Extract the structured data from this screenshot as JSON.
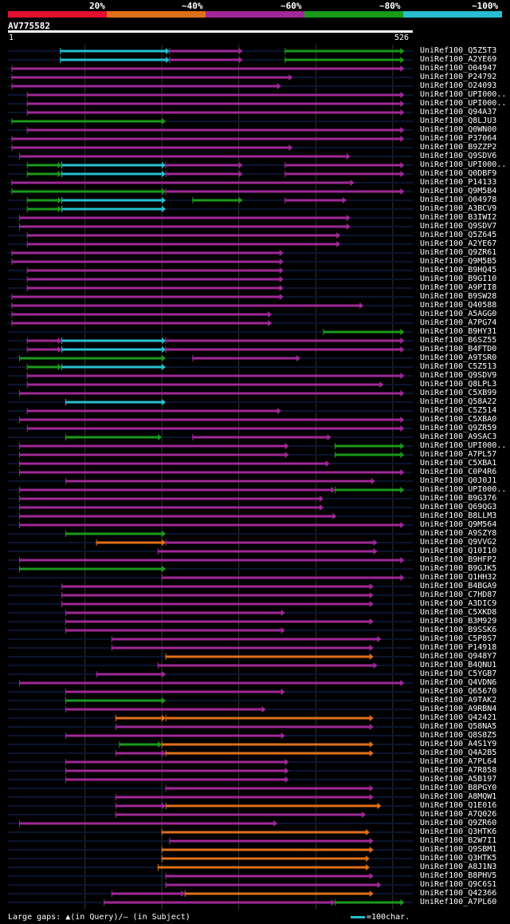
{
  "legend": {
    "labels": [
      "20%",
      "~40%",
      "~60%",
      "~80%",
      "~100%"
    ],
    "colors": [
      "#e0102e",
      "#e07018",
      "#a02898",
      "#1a9a1a",
      "#27bfcf"
    ]
  },
  "query": {
    "name": "AV775582",
    "start": "1",
    "end": "526"
  },
  "footer": {
    "gaps_text": "Large gaps: ▲(in Query)/— (in Subject)",
    "scale_text": "=100char."
  },
  "chart_data": {
    "type": "alignment",
    "title": "AV775582",
    "query_length": 526,
    "hits": [
      {
        "name": "UniRef100_Q5Z5T3",
        "segments": [
          [
            68,
            210,
            "cyan"
          ],
          [
            210,
            305,
            "purple"
          ],
          [
            360,
            515,
            "green"
          ]
        ]
      },
      {
        "name": "UniRef100_A2YE69",
        "segments": [
          [
            68,
            210,
            "cyan"
          ],
          [
            210,
            305,
            "purple"
          ],
          [
            360,
            515,
            "green"
          ]
        ]
      },
      {
        "name": "UniRef100_O04947",
        "segments": [
          [
            5,
            515,
            "purple"
          ]
        ]
      },
      {
        "name": "UniRef100_P24792",
        "segments": [
          [
            5,
            370,
            "purple"
          ]
        ]
      },
      {
        "name": "UniRef100_O24093",
        "segments": [
          [
            5,
            355,
            "purple"
          ]
        ]
      },
      {
        "name": "UniRef100_UPI000..",
        "segments": [
          [
            25,
            515,
            "purple"
          ]
        ]
      },
      {
        "name": "UniRef100_UPI000..",
        "segments": [
          [
            25,
            515,
            "purple"
          ]
        ]
      },
      {
        "name": "UniRef100_Q94A37",
        "segments": [
          [
            25,
            515,
            "purple"
          ]
        ]
      },
      {
        "name": "UniRef100_Q8LJU3",
        "segments": [
          [
            5,
            205,
            "green"
          ]
        ]
      },
      {
        "name": "UniRef100_Q0WN00",
        "segments": [
          [
            25,
            515,
            "purple"
          ]
        ]
      },
      {
        "name": "UniRef100_P37064",
        "segments": [
          [
            5,
            515,
            "purple"
          ]
        ]
      },
      {
        "name": "UniRef100_B9ZZP2",
        "segments": [
          [
            5,
            370,
            "purple"
          ]
        ]
      },
      {
        "name": "UniRef100_Q9SDV6",
        "segments": [
          [
            15,
            445,
            "purple"
          ]
        ]
      },
      {
        "name": "UniRef100_UPI000..",
        "segments": [
          [
            25,
            70,
            "green"
          ],
          [
            70,
            205,
            "cyan"
          ],
          [
            205,
            305,
            "purple"
          ],
          [
            360,
            515,
            "purple"
          ]
        ]
      },
      {
        "name": "UniRef100_Q0DBF9",
        "segments": [
          [
            25,
            70,
            "green"
          ],
          [
            70,
            205,
            "cyan"
          ],
          [
            205,
            305,
            "purple"
          ],
          [
            360,
            515,
            "purple"
          ]
        ]
      },
      {
        "name": "UniRef100_P14133",
        "segments": [
          [
            5,
            450,
            "purple"
          ]
        ]
      },
      {
        "name": "UniRef100_Q9M5B4",
        "segments": [
          [
            5,
            205,
            "green"
          ],
          [
            205,
            515,
            "purple"
          ]
        ]
      },
      {
        "name": "UniRef100_O04978",
        "segments": [
          [
            25,
            70,
            "green"
          ],
          [
            70,
            205,
            "cyan"
          ],
          [
            240,
            305,
            "green"
          ],
          [
            360,
            440,
            "purple"
          ]
        ]
      },
      {
        "name": "UniRef100_A3BCV9",
        "segments": [
          [
            25,
            70,
            "green"
          ],
          [
            70,
            205,
            "cyan"
          ]
        ]
      },
      {
        "name": "UniRef100_B3IWI2",
        "segments": [
          [
            15,
            445,
            "purple"
          ]
        ]
      },
      {
        "name": "UniRef100_Q9SDV7",
        "segments": [
          [
            15,
            445,
            "purple"
          ]
        ]
      },
      {
        "name": "UniRef100_Q5Z645",
        "segments": [
          [
            25,
            432,
            "purple"
          ]
        ]
      },
      {
        "name": "UniRef100_A2YE67",
        "segments": [
          [
            25,
            432,
            "purple"
          ]
        ]
      },
      {
        "name": "UniRef100_Q9ZR61",
        "segments": [
          [
            5,
            358,
            "purple"
          ]
        ]
      },
      {
        "name": "UniRef100_Q9M5B5",
        "segments": [
          [
            5,
            358,
            "purple"
          ]
        ]
      },
      {
        "name": "UniRef100_B9HQ45",
        "segments": [
          [
            25,
            358,
            "purple"
          ]
        ]
      },
      {
        "name": "UniRef100_B9GI10",
        "segments": [
          [
            25,
            358,
            "purple"
          ]
        ]
      },
      {
        "name": "UniRef100_A9PII8",
        "segments": [
          [
            25,
            358,
            "purple"
          ]
        ]
      },
      {
        "name": "UniRef100_B9SW28",
        "segments": [
          [
            5,
            358,
            "purple"
          ]
        ]
      },
      {
        "name": "UniRef100_Q40588",
        "segments": [
          [
            5,
            462,
            "purple"
          ]
        ]
      },
      {
        "name": "UniRef100_A5AGG0",
        "segments": [
          [
            5,
            343,
            "purple"
          ]
        ]
      },
      {
        "name": "UniRef100_A7PG74",
        "segments": [
          [
            5,
            343,
            "purple"
          ]
        ]
      },
      {
        "name": "UniRef100_B9HY31",
        "segments": [
          [
            410,
            515,
            "green"
          ]
        ]
      },
      {
        "name": "UniRef100_B6SZ55",
        "segments": [
          [
            25,
            70,
            "purple"
          ],
          [
            70,
            205,
            "cyan"
          ],
          [
            205,
            515,
            "purple"
          ]
        ]
      },
      {
        "name": "UniRef100_B4FTD0",
        "segments": [
          [
            25,
            70,
            "purple"
          ],
          [
            70,
            205,
            "cyan"
          ],
          [
            205,
            515,
            "purple"
          ]
        ]
      },
      {
        "name": "UniRef100_A9TSR0",
        "segments": [
          [
            15,
            205,
            "green"
          ],
          [
            240,
            380,
            "purple"
          ]
        ]
      },
      {
        "name": "UniRef100_C5Z513",
        "segments": [
          [
            25,
            70,
            "green"
          ],
          [
            70,
            205,
            "cyan"
          ]
        ]
      },
      {
        "name": "UniRef100_Q9SDV9",
        "segments": [
          [
            25,
            515,
            "purple"
          ]
        ]
      },
      {
        "name": "UniRef100_Q8LPL3",
        "segments": [
          [
            25,
            488,
            "purple"
          ]
        ]
      },
      {
        "name": "UniRef100_C5XB99",
        "segments": [
          [
            15,
            515,
            "purple"
          ]
        ]
      },
      {
        "name": "UniRef100_Q58A22",
        "segments": [
          [
            75,
            205,
            "cyan"
          ]
        ]
      },
      {
        "name": "UniRef100_C5Z514",
        "segments": [
          [
            25,
            355,
            "purple"
          ]
        ]
      },
      {
        "name": "UniRef100_C5XBA0",
        "segments": [
          [
            15,
            515,
            "purple"
          ]
        ]
      },
      {
        "name": "UniRef100_Q9ZR59",
        "segments": [
          [
            25,
            515,
            "purple"
          ]
        ]
      },
      {
        "name": "UniRef100_A9SAC3",
        "segments": [
          [
            75,
            200,
            "green"
          ],
          [
            240,
            420,
            "purple"
          ]
        ]
      },
      {
        "name": "UniRef100_UPI000..",
        "segments": [
          [
            15,
            365,
            "purple"
          ],
          [
            425,
            515,
            "green"
          ]
        ]
      },
      {
        "name": "UniRef100_A7PL57",
        "segments": [
          [
            15,
            365,
            "purple"
          ],
          [
            425,
            515,
            "green"
          ]
        ]
      },
      {
        "name": "UniRef100_C5XBA1",
        "segments": [
          [
            15,
            418,
            "purple"
          ]
        ]
      },
      {
        "name": "UniRef100_C0P4R6",
        "segments": [
          [
            15,
            515,
            "purple"
          ]
        ]
      },
      {
        "name": "UniRef100_Q0J0J1",
        "segments": [
          [
            75,
            477,
            "purple"
          ]
        ]
      },
      {
        "name": "UniRef100_UPI000..",
        "segments": [
          [
            15,
            425,
            "purple"
          ],
          [
            425,
            515,
            "green"
          ]
        ]
      },
      {
        "name": "UniRef100_B9G376",
        "segments": [
          [
            15,
            410,
            "purple"
          ]
        ]
      },
      {
        "name": "UniRef100_Q69QG3",
        "segments": [
          [
            15,
            410,
            "purple"
          ]
        ]
      },
      {
        "name": "UniRef100_B8LLM3",
        "segments": [
          [
            15,
            427,
            "purple"
          ]
        ]
      },
      {
        "name": "UniRef100_Q9M564",
        "segments": [
          [
            15,
            515,
            "purple"
          ]
        ]
      },
      {
        "name": "UniRef100_A9SZY8",
        "segments": [
          [
            75,
            205,
            "green"
          ]
        ]
      },
      {
        "name": "UniRef100_Q9VVG2",
        "segments": [
          [
            115,
            205,
            "orange"
          ],
          [
            205,
            480,
            "purple"
          ]
        ]
      },
      {
        "name": "UniRef100_Q10I10",
        "segments": [
          [
            195,
            480,
            "purple"
          ]
        ]
      },
      {
        "name": "UniRef100_B9HFP2",
        "segments": [
          [
            15,
            515,
            "purple"
          ]
        ]
      },
      {
        "name": "UniRef100_B9GJK5",
        "segments": [
          [
            15,
            205,
            "green"
          ]
        ]
      },
      {
        "name": "UniRef100_Q1HH32",
        "segments": [
          [
            200,
            515,
            "purple"
          ]
        ]
      },
      {
        "name": "UniRef100_B4BGA9",
        "segments": [
          [
            70,
            475,
            "purple"
          ]
        ]
      },
      {
        "name": "UniRef100_C7HD87",
        "segments": [
          [
            70,
            475,
            "purple"
          ]
        ]
      },
      {
        "name": "UniRef100_A3DIC9",
        "segments": [
          [
            70,
            475,
            "purple"
          ]
        ]
      },
      {
        "name": "UniRef100_C5XKD8",
        "segments": [
          [
            75,
            360,
            "purple"
          ]
        ]
      },
      {
        "name": "UniRef100_B3M929",
        "segments": [
          [
            75,
            475,
            "purple"
          ]
        ]
      },
      {
        "name": "UniRef100_B9SSK6",
        "segments": [
          [
            75,
            360,
            "purple"
          ]
        ]
      },
      {
        "name": "UniRef100_C5P8S7",
        "segments": [
          [
            135,
            485,
            "purple"
          ]
        ]
      },
      {
        "name": "UniRef100_P14918",
        "segments": [
          [
            135,
            475,
            "purple"
          ]
        ]
      },
      {
        "name": "UniRef100_Q948Y7",
        "segments": [
          [
            205,
            475,
            "orange"
          ]
        ]
      },
      {
        "name": "UniRef100_B4QNU1",
        "segments": [
          [
            195,
            480,
            "purple"
          ]
        ]
      },
      {
        "name": "UniRef100_C5YGB7",
        "segments": [
          [
            115,
            205,
            "purple"
          ]
        ]
      },
      {
        "name": "UniRef100_Q4VDN6",
        "segments": [
          [
            15,
            515,
            "purple"
          ]
        ]
      },
      {
        "name": "UniRef100_Q65670",
        "segments": [
          [
            75,
            360,
            "purple"
          ]
        ]
      },
      {
        "name": "UniRef100_A9TAK2",
        "segments": [
          [
            75,
            205,
            "green"
          ]
        ]
      },
      {
        "name": "UniRef100_A9RBN4",
        "segments": [
          [
            75,
            335,
            "purple"
          ]
        ]
      },
      {
        "name": "UniRef100_Q42421",
        "segments": [
          [
            140,
            205,
            "orange"
          ],
          [
            205,
            475,
            "orange"
          ]
        ]
      },
      {
        "name": "UniRef100_Q58NA5",
        "segments": [
          [
            140,
            475,
            "purple"
          ]
        ]
      },
      {
        "name": "UniRef100_Q8S8Z5",
        "segments": [
          [
            75,
            360,
            "purple"
          ]
        ]
      },
      {
        "name": "UniRef100_A4S1Y9",
        "segments": [
          [
            145,
            200,
            "green"
          ],
          [
            200,
            475,
            "orange"
          ]
        ]
      },
      {
        "name": "UniRef100_Q4A2B5",
        "segments": [
          [
            140,
            205,
            "purple"
          ],
          [
            205,
            475,
            "orange"
          ]
        ]
      },
      {
        "name": "UniRef100_A7PL64",
        "segments": [
          [
            75,
            365,
            "purple"
          ]
        ]
      },
      {
        "name": "UniRef100_A7R858",
        "segments": [
          [
            75,
            365,
            "purple"
          ]
        ]
      },
      {
        "name": "UniRef100_A5B197",
        "segments": [
          [
            75,
            365,
            "purple"
          ]
        ]
      },
      {
        "name": "UniRef100_B8PGY0",
        "segments": [
          [
            205,
            475,
            "purple"
          ]
        ]
      },
      {
        "name": "UniRef100_A8MQW1",
        "segments": [
          [
            140,
            475,
            "purple"
          ]
        ]
      },
      {
        "name": "UniRef100_Q1E016",
        "segments": [
          [
            140,
            205,
            "purple"
          ],
          [
            205,
            485,
            "orange"
          ]
        ]
      },
      {
        "name": "UniRef100_A7Q026",
        "segments": [
          [
            140,
            465,
            "purple"
          ]
        ]
      },
      {
        "name": "UniRef100_Q9ZR60",
        "segments": [
          [
            15,
            350,
            "purple"
          ]
        ]
      },
      {
        "name": "UniRef100_Q3HTK6",
        "segments": [
          [
            200,
            470,
            "orange"
          ]
        ]
      },
      {
        "name": "UniRef100_B2W7I1",
        "segments": [
          [
            210,
            475,
            "purple"
          ]
        ]
      },
      {
        "name": "UniRef100_Q9SBM1",
        "segments": [
          [
            200,
            475,
            "orange"
          ]
        ]
      },
      {
        "name": "UniRef100_Q3HTK5",
        "segments": [
          [
            200,
            470,
            "orange"
          ]
        ]
      },
      {
        "name": "UniRef100_A8J1N3",
        "segments": [
          [
            195,
            470,
            "orange"
          ]
        ]
      },
      {
        "name": "UniRef100_B8PHV5",
        "segments": [
          [
            205,
            475,
            "purple"
          ]
        ]
      },
      {
        "name": "UniRef100_Q9C6S1",
        "segments": [
          [
            205,
            485,
            "purple"
          ]
        ]
      },
      {
        "name": "UniRef100_Q42366",
        "segments": [
          [
            135,
            230,
            "purple"
          ],
          [
            230,
            475,
            "orange"
          ]
        ]
      },
      {
        "name": "UniRef100_A7PL60",
        "segments": [
          [
            125,
            425,
            "purple"
          ],
          [
            425,
            515,
            "green"
          ]
        ]
      }
    ]
  }
}
